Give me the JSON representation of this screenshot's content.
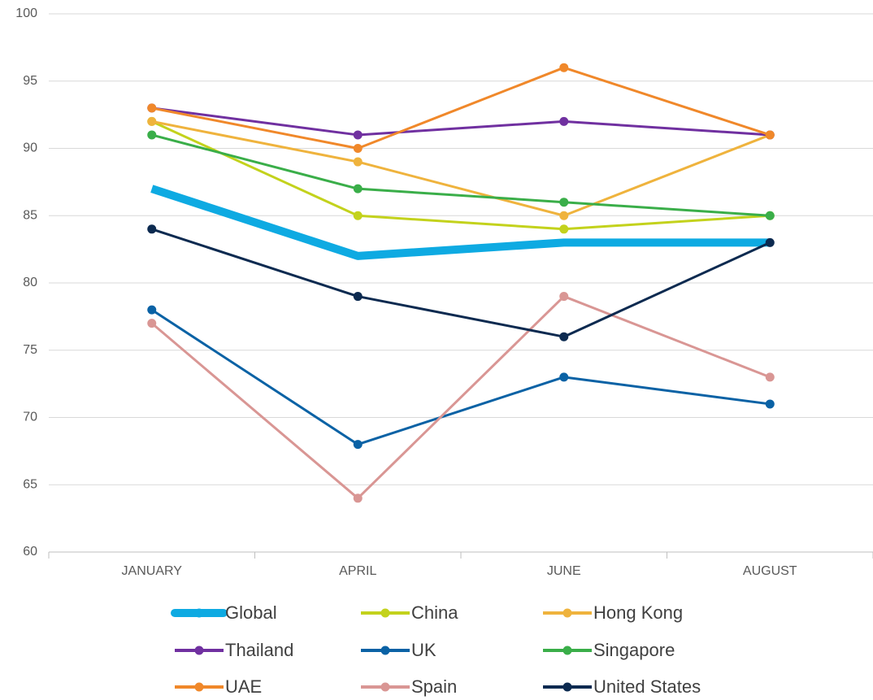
{
  "chart_data": {
    "type": "line",
    "categories": [
      "JANUARY",
      "APRIL",
      "JUNE",
      "AUGUST"
    ],
    "series": [
      {
        "name": "Global",
        "color": "#0eaae2",
        "values": [
          87,
          82,
          83,
          83
        ]
      },
      {
        "name": "China",
        "color": "#c3d21c",
        "values": [
          92,
          85,
          84,
          85
        ]
      },
      {
        "name": "Hong Kong",
        "color": "#efb33d",
        "values": [
          92,
          89,
          85,
          91
        ]
      },
      {
        "name": "Thailand",
        "color": "#7030a0",
        "values": [
          93,
          91,
          92,
          91
        ]
      },
      {
        "name": "UK",
        "color": "#0a62a5",
        "values": [
          78,
          68,
          73,
          71
        ]
      },
      {
        "name": "Singapore",
        "color": "#3aae49",
        "values": [
          91,
          87,
          86,
          85
        ]
      },
      {
        "name": "UAE",
        "color": "#f0882a",
        "values": [
          93,
          90,
          96,
          91
        ]
      },
      {
        "name": "Spain",
        "color": "#d99694",
        "values": [
          77,
          64,
          79,
          73
        ]
      },
      {
        "name": "United States",
        "color": "#0c2a50",
        "values": [
          84,
          79,
          76,
          83
        ]
      }
    ],
    "ylim": [
      60,
      100
    ],
    "yticks": [
      60,
      65,
      70,
      75,
      80,
      85,
      90,
      95,
      100
    ],
    "grid": true,
    "legend": "bottom"
  }
}
